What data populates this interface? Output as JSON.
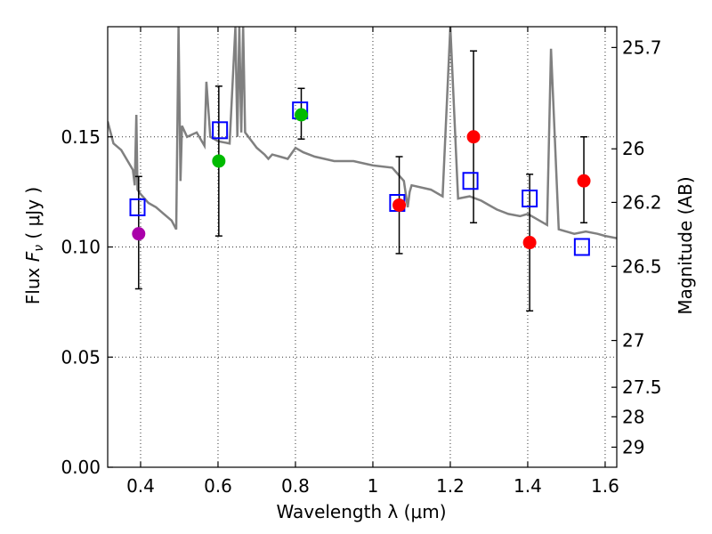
{
  "chart_data": {
    "type": "scatter",
    "title": "",
    "xlabel": "Wavelength  λ (μm)",
    "ylabel": "Flux  F_ν  ( μJy )",
    "ylabel_parts": {
      "prefix": "Flux  ",
      "symbol": "F",
      "subscript": "ν",
      "unit": "  ( μJy )"
    },
    "y2label": "Magnitude (AB)",
    "xlim": [
      0.315,
      1.63
    ],
    "ylim": [
      0.0,
      0.2
    ],
    "grid": true,
    "x_ticks": [
      {
        "value": 0.4,
        "label": "0.4"
      },
      {
        "value": 0.6,
        "label": "0.6"
      },
      {
        "value": 0.8,
        "label": "0.8"
      },
      {
        "value": 1.0,
        "label": "1"
      },
      {
        "value": 1.2,
        "label": "1.2"
      },
      {
        "value": 1.4,
        "label": "1.4"
      },
      {
        "value": 1.6,
        "label": "1.6"
      }
    ],
    "y_ticks": [
      {
        "value": 0.0,
        "label": "0.00"
      },
      {
        "value": 0.05,
        "label": "0.05"
      },
      {
        "value": 0.1,
        "label": "0.10"
      },
      {
        "value": 0.15,
        "label": "0.15"
      }
    ],
    "y2_ticks": [
      {
        "mag": 25.7,
        "label": "25.7"
      },
      {
        "mag": 26.0,
        "label": "26"
      },
      {
        "mag": 26.2,
        "label": "26.2"
      },
      {
        "mag": 26.5,
        "label": "26.5"
      },
      {
        "mag": 27.0,
        "label": "27"
      },
      {
        "mag": 27.5,
        "label": "27.5"
      },
      {
        "mag": 28.0,
        "label": "28"
      },
      {
        "mag": 29.0,
        "label": "29"
      }
    ],
    "observed": [
      {
        "x": 0.395,
        "y": 0.106,
        "yerr_low": 0.081,
        "yerr_high": 0.132,
        "color": "#aa00aa"
      },
      {
        "x": 0.602,
        "y": 0.139,
        "yerr_low": 0.105,
        "yerr_high": 0.173,
        "color": "#00bb00"
      },
      {
        "x": 0.815,
        "y": 0.16,
        "yerr_low": 0.149,
        "yerr_high": 0.172,
        "color": "#00bb00"
      },
      {
        "x": 1.068,
        "y": 0.119,
        "yerr_low": 0.097,
        "yerr_high": 0.141,
        "color": "#ff0000"
      },
      {
        "x": 1.26,
        "y": 0.15,
        "yerr_low": 0.111,
        "yerr_high": 0.189,
        "color": "#ff0000"
      },
      {
        "x": 1.405,
        "y": 0.102,
        "yerr_low": 0.071,
        "yerr_high": 0.133,
        "color": "#ff0000"
      },
      {
        "x": 1.545,
        "y": 0.13,
        "yerr_low": 0.111,
        "yerr_high": 0.15,
        "color": "#ff0000"
      }
    ],
    "model_points": [
      {
        "x": 0.392,
        "y": 0.118
      },
      {
        "x": 0.605,
        "y": 0.153
      },
      {
        "x": 0.812,
        "y": 0.162
      },
      {
        "x": 1.063,
        "y": 0.12
      },
      {
        "x": 1.252,
        "y": 0.13
      },
      {
        "x": 1.405,
        "y": 0.122
      },
      {
        "x": 1.54,
        "y": 0.1
      }
    ],
    "model_spectrum": {
      "x": [
        0.315,
        0.33,
        0.35,
        0.37,
        0.38,
        0.385,
        0.389,
        0.392,
        0.4,
        0.42,
        0.44,
        0.46,
        0.48,
        0.492,
        0.498,
        0.503,
        0.507,
        0.52,
        0.545,
        0.565,
        0.57,
        0.58,
        0.6,
        0.63,
        0.645,
        0.65,
        0.655,
        0.66,
        0.665,
        0.67,
        0.7,
        0.72,
        0.73,
        0.74,
        0.76,
        0.78,
        0.8,
        0.82,
        0.85,
        0.9,
        0.95,
        1.0,
        1.05,
        1.08,
        1.09,
        1.095,
        1.1,
        1.15,
        1.18,
        1.2,
        1.22,
        1.25,
        1.28,
        1.3,
        1.32,
        1.35,
        1.38,
        1.4,
        1.42,
        1.45,
        1.46,
        1.48,
        1.5,
        1.52,
        1.55,
        1.58,
        1.6,
        1.63
      ],
      "y": [
        0.157,
        0.147,
        0.144,
        0.138,
        0.135,
        0.128,
        0.16,
        0.126,
        0.124,
        0.12,
        0.118,
        0.115,
        0.112,
        0.108,
        0.2,
        0.13,
        0.155,
        0.15,
        0.152,
        0.146,
        0.175,
        0.15,
        0.148,
        0.147,
        0.2,
        0.15,
        0.2,
        0.152,
        0.2,
        0.152,
        0.145,
        0.142,
        0.14,
        0.142,
        0.141,
        0.14,
        0.145,
        0.143,
        0.141,
        0.139,
        0.139,
        0.137,
        0.136,
        0.13,
        0.118,
        0.125,
        0.128,
        0.126,
        0.123,
        0.2,
        0.122,
        0.123,
        0.121,
        0.119,
        0.117,
        0.115,
        0.114,
        0.115,
        0.113,
        0.11,
        0.19,
        0.108,
        0.107,
        0.106,
        0.107,
        0.106,
        0.105,
        0.104
      ]
    },
    "spectrum_color": "#808080",
    "model_marker_color": "#0000ff"
  }
}
